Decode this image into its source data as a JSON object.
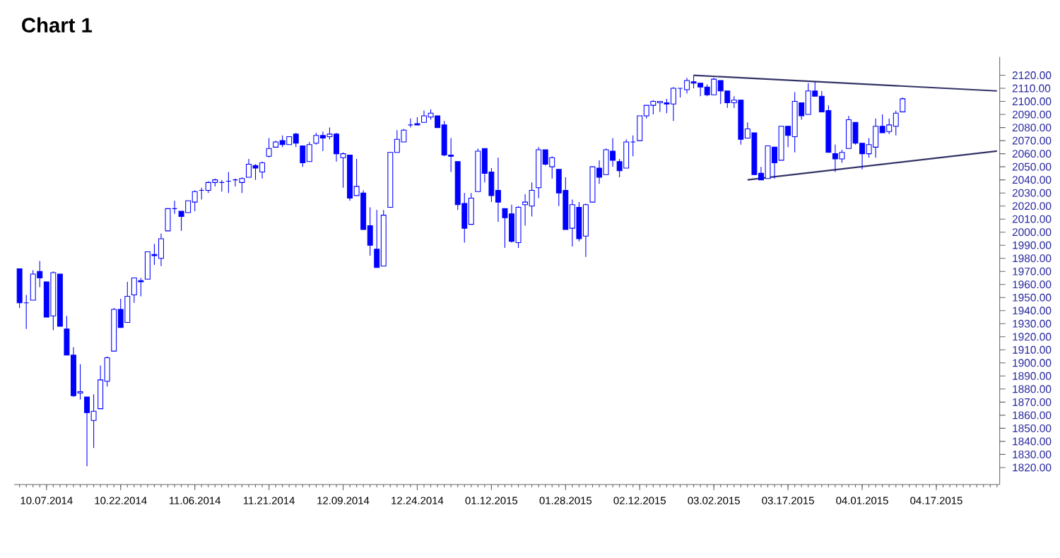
{
  "chart_data": {
    "type": "candlestick",
    "title": "Chart 1",
    "categories": [
      null,
      null,
      null,
      null,
      "10.07.2014",
      null,
      null,
      null,
      null,
      null,
      null,
      null,
      null,
      null,
      null,
      "10.22.2014",
      null,
      null,
      null,
      null,
      null,
      null,
      null,
      null,
      null,
      null,
      "11.06.2014",
      null,
      null,
      null,
      null,
      null,
      null,
      null,
      null,
      null,
      null,
      "11.21.2014",
      null,
      null,
      null,
      null,
      null,
      null,
      null,
      null,
      null,
      null,
      "12.09.2014",
      null,
      null,
      null,
      null,
      null,
      null,
      null,
      null,
      null,
      null,
      "12.24.2014",
      null,
      null,
      null,
      null,
      null,
      null,
      null,
      null,
      null,
      null,
      "01.12.2015",
      null,
      null,
      null,
      null,
      null,
      null,
      null,
      null,
      null,
      null,
      "01.28.2015",
      null,
      null,
      null,
      null,
      null,
      null,
      null,
      null,
      null,
      null,
      "02.12.2015",
      null,
      null,
      null,
      null,
      null,
      null,
      null,
      null,
      null,
      null,
      "03.02.2015",
      null,
      null,
      null,
      null,
      null,
      null,
      null,
      null,
      null,
      null,
      "03.17.2015",
      null,
      null,
      null,
      null,
      null,
      null,
      null,
      null,
      null,
      null,
      "04.01.2015",
      null,
      null,
      null,
      null,
      null,
      null,
      null,
      null,
      null,
      null,
      "04.17.2015",
      null,
      null,
      null,
      null,
      null,
      null,
      null,
      null,
      null
    ],
    "ohlc": [
      [
        1972,
        1972,
        1942,
        1946
      ],
      [
        1946,
        1952,
        1926,
        1946
      ],
      [
        1948,
        1971,
        1948,
        1968
      ],
      [
        1970,
        1978,
        1958,
        1965
      ],
      [
        1962,
        1962,
        1935,
        1935
      ],
      [
        1936,
        1970,
        1925,
        1969
      ],
      [
        1968,
        1968,
        1928,
        1928
      ],
      [
        1926,
        1936,
        1906,
        1906
      ],
      [
        1906,
        1912,
        1874,
        1875
      ],
      [
        1877,
        1899,
        1872,
        1878
      ],
      [
        1874,
        1874,
        1821,
        1862
      ],
      [
        1856,
        1876,
        1835,
        1863
      ],
      [
        1865,
        1898,
        1865,
        1887
      ],
      [
        1886,
        1905,
        1882,
        1904
      ],
      [
        1909,
        1942,
        1909,
        1941
      ],
      [
        1941,
        1949,
        1927,
        1927
      ],
      [
        1931,
        1962,
        1931,
        1951
      ],
      [
        1952,
        1965,
        1946,
        1965
      ],
      [
        1963,
        1965,
        1951,
        1962
      ],
      [
        1964,
        1985,
        1964,
        1985
      ],
      [
        1983,
        1991,
        1975,
        1982
      ],
      [
        1980,
        1999,
        1974,
        1995
      ],
      [
        2001,
        2018,
        2001,
        2018
      ],
      [
        2018,
        2024,
        2014,
        2018
      ],
      [
        2016,
        2016,
        2001,
        2012
      ],
      [
        2015,
        2024,
        2015,
        2024
      ],
      [
        2023,
        2032,
        2016,
        2031
      ],
      [
        2032,
        2034,
        2025,
        2032
      ],
      [
        2032,
        2039,
        2030,
        2038
      ],
      [
        2038,
        2041,
        2035,
        2040
      ],
      [
        2038,
        2040,
        2031,
        2038
      ],
      [
        2039,
        2046,
        2030,
        2039
      ],
      [
        2040,
        2041,
        2035,
        2040
      ],
      [
        2038,
        2042,
        2030,
        2041
      ],
      [
        2042,
        2056,
        2042,
        2052
      ],
      [
        2051,
        2052,
        2040,
        2049
      ],
      [
        2046,
        2054,
        2041,
        2053
      ],
      [
        2058,
        2072,
        2057,
        2064
      ],
      [
        2065,
        2070,
        2065,
        2069
      ],
      [
        2070,
        2074,
        2065,
        2067
      ],
      [
        2067,
        2073,
        2067,
        2073
      ],
      [
        2075,
        2076,
        2065,
        2068
      ],
      [
        2066,
        2066,
        2050,
        2053
      ],
      [
        2054,
        2069,
        2054,
        2067
      ],
      [
        2068,
        2076,
        2067,
        2074
      ],
      [
        2074,
        2077,
        2062,
        2072
      ],
      [
        2073,
        2080,
        2071,
        2075
      ],
      [
        2075,
        2076,
        2054,
        2060
      ],
      [
        2057,
        2061,
        2034,
        2060
      ],
      [
        2059,
        2059,
        2024,
        2026
      ],
      [
        2028,
        2056,
        2028,
        2035
      ],
      [
        2030,
        2032,
        2002,
        2002
      ],
      [
        2005,
        2019,
        1982,
        1990
      ],
      [
        1987,
        2017,
        1973,
        1973
      ],
      [
        1974,
        2017,
        1974,
        2013
      ],
      [
        2019,
        2061,
        2019,
        2061
      ],
      [
        2061,
        2078,
        2061,
        2071
      ],
      [
        2069,
        2079,
        2069,
        2078
      ],
      [
        2082,
        2087,
        2080,
        2082
      ],
      [
        2083,
        2088,
        2082,
        2082
      ],
      [
        2084,
        2093,
        2084,
        2089
      ],
      [
        2088,
        2094,
        2086,
        2091
      ],
      [
        2089,
        2089,
        2080,
        2080
      ],
      [
        2082,
        2085,
        2058,
        2059
      ],
      [
        2059,
        2072,
        2046,
        2058
      ],
      [
        2054,
        2054,
        2017,
        2021
      ],
      [
        2022,
        2030,
        1992,
        2003
      ],
      [
        2006,
        2030,
        2006,
        2026
      ],
      [
        2031,
        2064,
        2031,
        2062
      ],
      [
        2064,
        2064,
        2038,
        2045
      ],
      [
        2046,
        2049,
        2023,
        2028
      ],
      [
        2032,
        2057,
        2008,
        2023
      ],
      [
        2018,
        2018,
        1988,
        2011
      ],
      [
        2014,
        2021,
        1992,
        1993
      ],
      [
        1992,
        2020,
        1988,
        2019
      ],
      [
        2021,
        2029,
        2005,
        2023
      ],
      [
        2020,
        2038,
        2012,
        2032
      ],
      [
        2034,
        2065,
        2026,
        2063
      ],
      [
        2063,
        2063,
        2051,
        2052
      ],
      [
        2050,
        2058,
        2041,
        2057
      ],
      [
        2048,
        2048,
        2020,
        2030
      ],
      [
        2032,
        2042,
        2002,
        2002
      ],
      [
        2003,
        2025,
        1989,
        2021
      ],
      [
        2019,
        2023,
        1993,
        1995
      ],
      [
        1997,
        2022,
        1981,
        2021
      ],
      [
        2023,
        2050,
        2023,
        2050
      ],
      [
        2049,
        2055,
        2037,
        2042
      ],
      [
        2044,
        2064,
        2044,
        2063
      ],
      [
        2062,
        2072,
        2050,
        2055
      ],
      [
        2054,
        2056,
        2042,
        2047
      ],
      [
        2049,
        2071,
        2049,
        2069
      ],
      [
        2069,
        2074,
        2058,
        2069
      ],
      [
        2070,
        2089,
        2070,
        2089
      ],
      [
        2089,
        2097,
        2087,
        2097
      ],
      [
        2097,
        2101,
        2090,
        2100
      ],
      [
        2099,
        2100,
        2092,
        2100
      ],
      [
        2099,
        2102,
        2091,
        2098
      ],
      [
        2098,
        2111,
        2085,
        2110
      ],
      [
        2110,
        2110,
        2103,
        2110
      ],
      [
        2109,
        2118,
        2106,
        2116
      ],
      [
        2115,
        2120,
        2110,
        2114
      ],
      [
        2114,
        2114,
        2104,
        2111
      ],
      [
        2111,
        2113,
        2104,
        2105
      ],
      [
        2105,
        2118,
        2105,
        2117
      ],
      [
        2116,
        2116,
        2098,
        2108
      ],
      [
        2108,
        2108,
        2095,
        2099
      ],
      [
        2099,
        2104,
        2095,
        2101
      ],
      [
        2101,
        2101,
        2067,
        2071
      ],
      [
        2072,
        2084,
        2072,
        2079
      ],
      [
        2076,
        2076,
        2044,
        2044
      ],
      [
        2045,
        2050,
        2040,
        2040
      ],
      [
        2041,
        2066,
        2041,
        2066
      ],
      [
        2065,
        2065,
        2041,
        2053
      ],
      [
        2055,
        2081,
        2055,
        2081
      ],
      [
        2081,
        2081,
        2065,
        2074
      ],
      [
        2073,
        2107,
        2061,
        2100
      ],
      [
        2099,
        2099,
        2086,
        2089
      ],
      [
        2090,
        2114,
        2090,
        2108
      ],
      [
        2108,
        2115,
        2104,
        2104
      ],
      [
        2104,
        2108,
        2092,
        2092
      ],
      [
        2093,
        2097,
        2061,
        2061
      ],
      [
        2060,
        2067,
        2046,
        2056
      ],
      [
        2056,
        2063,
        2053,
        2061
      ],
      [
        2064,
        2089,
        2064,
        2086
      ],
      [
        2084,
        2084,
        2067,
        2068
      ],
      [
        2068,
        2068,
        2048,
        2060
      ],
      [
        2060,
        2072,
        2057,
        2067
      ],
      [
        2065,
        2087,
        2057,
        2081
      ],
      [
        2081,
        2090,
        2076,
        2076
      ],
      [
        2077,
        2087,
        2075,
        2082
      ],
      [
        2081,
        2093,
        2074,
        2091
      ],
      [
        2092,
        2103,
        2092,
        2102
      ],
      null,
      null,
      null,
      null,
      null,
      null,
      null,
      null,
      null,
      null,
      null,
      null,
      null,
      null
    ],
    "color": "#0000ff",
    "series": [
      {
        "type": "line",
        "color": "#333366",
        "values": [
          null,
          null,
          null,
          null,
          null,
          null,
          null,
          null,
          null,
          null,
          null,
          null,
          null,
          null,
          null,
          null,
          null,
          null,
          null,
          null,
          null,
          null,
          null,
          null,
          null,
          null,
          null,
          null,
          null,
          null,
          null,
          null,
          null,
          null,
          null,
          null,
          null,
          null,
          null,
          null,
          null,
          null,
          null,
          null,
          null,
          null,
          null,
          null,
          null,
          null,
          null,
          null,
          null,
          null,
          null,
          null,
          null,
          null,
          null,
          null,
          null,
          null,
          null,
          null,
          null,
          null,
          null,
          null,
          null,
          null,
          null,
          null,
          null,
          null,
          null,
          null,
          null,
          null,
          null,
          null,
          null,
          null,
          null,
          null,
          null,
          null,
          null,
          null,
          null,
          null,
          null,
          null,
          null,
          null,
          null,
          null,
          null,
          null,
          null,
          null,
          2120,
          null,
          null,
          null,
          null,
          null,
          null,
          null,
          null,
          null,
          null,
          null,
          null,
          null,
          null,
          null,
          null,
          null,
          null,
          null,
          null,
          null,
          null,
          null,
          null,
          null,
          null,
          null,
          null,
          null,
          null,
          null,
          null,
          null,
          null,
          null,
          null,
          null,
          null,
          null,
          null,
          null,
          null,
          null,
          null,
          2108
        ]
      },
      {
        "type": "line",
        "color": "#333366",
        "values": [
          null,
          null,
          null,
          null,
          null,
          null,
          null,
          null,
          null,
          null,
          null,
          null,
          null,
          null,
          null,
          null,
          null,
          null,
          null,
          null,
          null,
          null,
          null,
          null,
          null,
          null,
          null,
          null,
          null,
          null,
          null,
          null,
          null,
          null,
          null,
          null,
          null,
          null,
          null,
          null,
          null,
          null,
          null,
          null,
          null,
          null,
          null,
          null,
          null,
          null,
          null,
          null,
          null,
          null,
          null,
          null,
          null,
          null,
          null,
          null,
          null,
          null,
          null,
          null,
          null,
          null,
          null,
          null,
          null,
          null,
          null,
          null,
          null,
          null,
          null,
          null,
          null,
          null,
          null,
          null,
          null,
          null,
          null,
          null,
          null,
          null,
          null,
          null,
          null,
          null,
          null,
          null,
          null,
          null,
          null,
          null,
          null,
          null,
          null,
          null,
          null,
          null,
          null,
          null,
          null,
          null,
          null,
          null,
          2040,
          null,
          null,
          null,
          null,
          null,
          null,
          null,
          null,
          null,
          null,
          null,
          null,
          null,
          null,
          null,
          null,
          null,
          null,
          null,
          null,
          null,
          null,
          null,
          null,
          null,
          null,
          null,
          null,
          null,
          null,
          null,
          null,
          null,
          null,
          null,
          null,
          2062
        ]
      }
    ],
    "ylim": [
      1807,
      2134
    ],
    "yticks": [
      {
        "value": 1820,
        "label": "1820.00"
      },
      {
        "value": 1830,
        "label": "1830.00"
      },
      {
        "value": 1840,
        "label": "1840.00"
      },
      {
        "value": 1850,
        "label": "1850.00"
      },
      {
        "value": 1860,
        "label": "1860.00"
      },
      {
        "value": 1870,
        "label": "1870.00"
      },
      {
        "value": 1880,
        "label": "1880.00"
      },
      {
        "value": 1890,
        "label": "1890.00"
      },
      {
        "value": 1900,
        "label": "1900.00"
      },
      {
        "value": 1910,
        "label": "1910.00"
      },
      {
        "value": 1920,
        "label": "1920.00"
      },
      {
        "value": 1930,
        "label": "1930.00"
      },
      {
        "value": 1940,
        "label": "1940.00"
      },
      {
        "value": 1950,
        "label": "1950.00"
      },
      {
        "value": 1960,
        "label": "1960.00"
      },
      {
        "value": 1970,
        "label": "1970.00"
      },
      {
        "value": 1980,
        "label": "1980.00"
      },
      {
        "value": 1990,
        "label": "1990.00"
      },
      {
        "value": 2000,
        "label": "2000.00"
      },
      {
        "value": 2010,
        "label": "2010.00"
      },
      {
        "value": 2020,
        "label": "2020.00"
      },
      {
        "value": 2030,
        "label": "2030.00"
      },
      {
        "value": 2040,
        "label": "2040.00"
      },
      {
        "value": 2050,
        "label": "2050.00"
      },
      {
        "value": 2060,
        "label": "2060.00"
      },
      {
        "value": 2070,
        "label": "2070.00"
      },
      {
        "value": 2080,
        "label": "2080.00"
      },
      {
        "value": 2090,
        "label": "2090.00"
      },
      {
        "value": 2100,
        "label": "2100.00"
      },
      {
        "value": 2110,
        "label": "2110.00"
      },
      {
        "value": 2120,
        "label": "2120.00"
      }
    ]
  }
}
